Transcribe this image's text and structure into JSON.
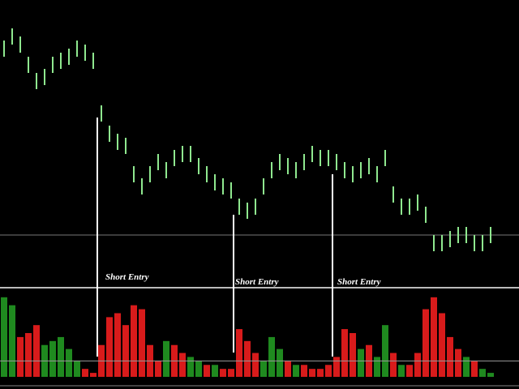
{
  "chart_data": [
    {
      "type": "hilo",
      "color": "#8fe88f",
      "high": [
        305,
        320,
        310,
        285,
        265,
        270,
        285,
        290,
        295,
        305,
        300,
        290,
        225,
        200,
        190,
        185,
        150,
        135,
        150,
        165,
        155,
        170,
        175,
        175,
        160,
        150,
        140,
        135,
        130,
        110,
        105,
        110,
        135,
        155,
        165,
        160,
        155,
        165,
        175,
        170,
        170,
        165,
        155,
        150,
        155,
        160,
        150,
        170,
        125,
        110,
        110,
        115,
        100,
        65,
        65,
        70,
        75,
        75,
        65,
        65,
        75
      ],
      "low": [
        285,
        300,
        290,
        265,
        245,
        250,
        265,
        270,
        275,
        285,
        280,
        270,
        205,
        180,
        170,
        165,
        130,
        115,
        130,
        145,
        135,
        150,
        155,
        155,
        140,
        130,
        120,
        115,
        110,
        90,
        85,
        90,
        115,
        135,
        145,
        140,
        135,
        145,
        155,
        150,
        150,
        145,
        135,
        130,
        135,
        140,
        130,
        150,
        105,
        90,
        90,
        95,
        80,
        45,
        45,
        50,
        55,
        55,
        45,
        45,
        55
      ],
      "ylim": [
        0,
        355
      ],
      "reference_line": 65,
      "annotations": [
        "Short Entry",
        "Short Entry",
        "Short Entry"
      ]
    },
    {
      "type": "bar",
      "values": [
        100,
        90,
        50,
        55,
        65,
        40,
        45,
        50,
        35,
        20,
        10,
        5,
        40,
        75,
        80,
        65,
        90,
        85,
        40,
        20,
        45,
        40,
        30,
        25,
        20,
        15,
        15,
        10,
        10,
        60,
        45,
        30,
        20,
        50,
        35,
        20,
        15,
        15,
        10,
        10,
        15,
        25,
        60,
        55,
        35,
        40,
        25,
        65,
        30,
        15,
        15,
        30,
        85,
        100,
        80,
        50,
        35,
        25,
        20,
        10,
        5
      ],
      "colors": [
        "#1f8a1f",
        "#1f8a1f",
        "#d81b1b",
        "#d81b1b",
        "#d81b1b",
        "#1f8a1f",
        "#1f8a1f",
        "#1f8a1f",
        "#1f8a1f",
        "#1f8a1f",
        "#d81b1b",
        "#d81b1b",
        "#d81b1b",
        "#d81b1b",
        "#d81b1b",
        "#d81b1b",
        "#d81b1b",
        "#d81b1b",
        "#d81b1b",
        "#d81b1b",
        "#1f8a1f",
        "#d81b1b",
        "#d81b1b",
        "#1f8a1f",
        "#1f8a1f",
        "#d81b1b",
        "#1f8a1f",
        "#d81b1b",
        "#d81b1b",
        "#d81b1b",
        "#d81b1b",
        "#d81b1b",
        "#1f8a1f",
        "#1f8a1f",
        "#1f8a1f",
        "#d81b1b",
        "#1f8a1f",
        "#d81b1b",
        "#d81b1b",
        "#d81b1b",
        "#d81b1b",
        "#d81b1b",
        "#d81b1b",
        "#d81b1b",
        "#1f8a1f",
        "#d81b1b",
        "#1f8a1f",
        "#1f8a1f",
        "#d81b1b",
        "#1f8a1f",
        "#d81b1b",
        "#d81b1b",
        "#d81b1b",
        "#d81b1b",
        "#d81b1b",
        "#d81b1b",
        "#d81b1b",
        "#1f8a1f",
        "#d81b1b",
        "#1f8a1f",
        "#1f8a1f"
      ],
      "ylim": [
        0,
        110
      ],
      "reference_line": 20
    }
  ]
}
